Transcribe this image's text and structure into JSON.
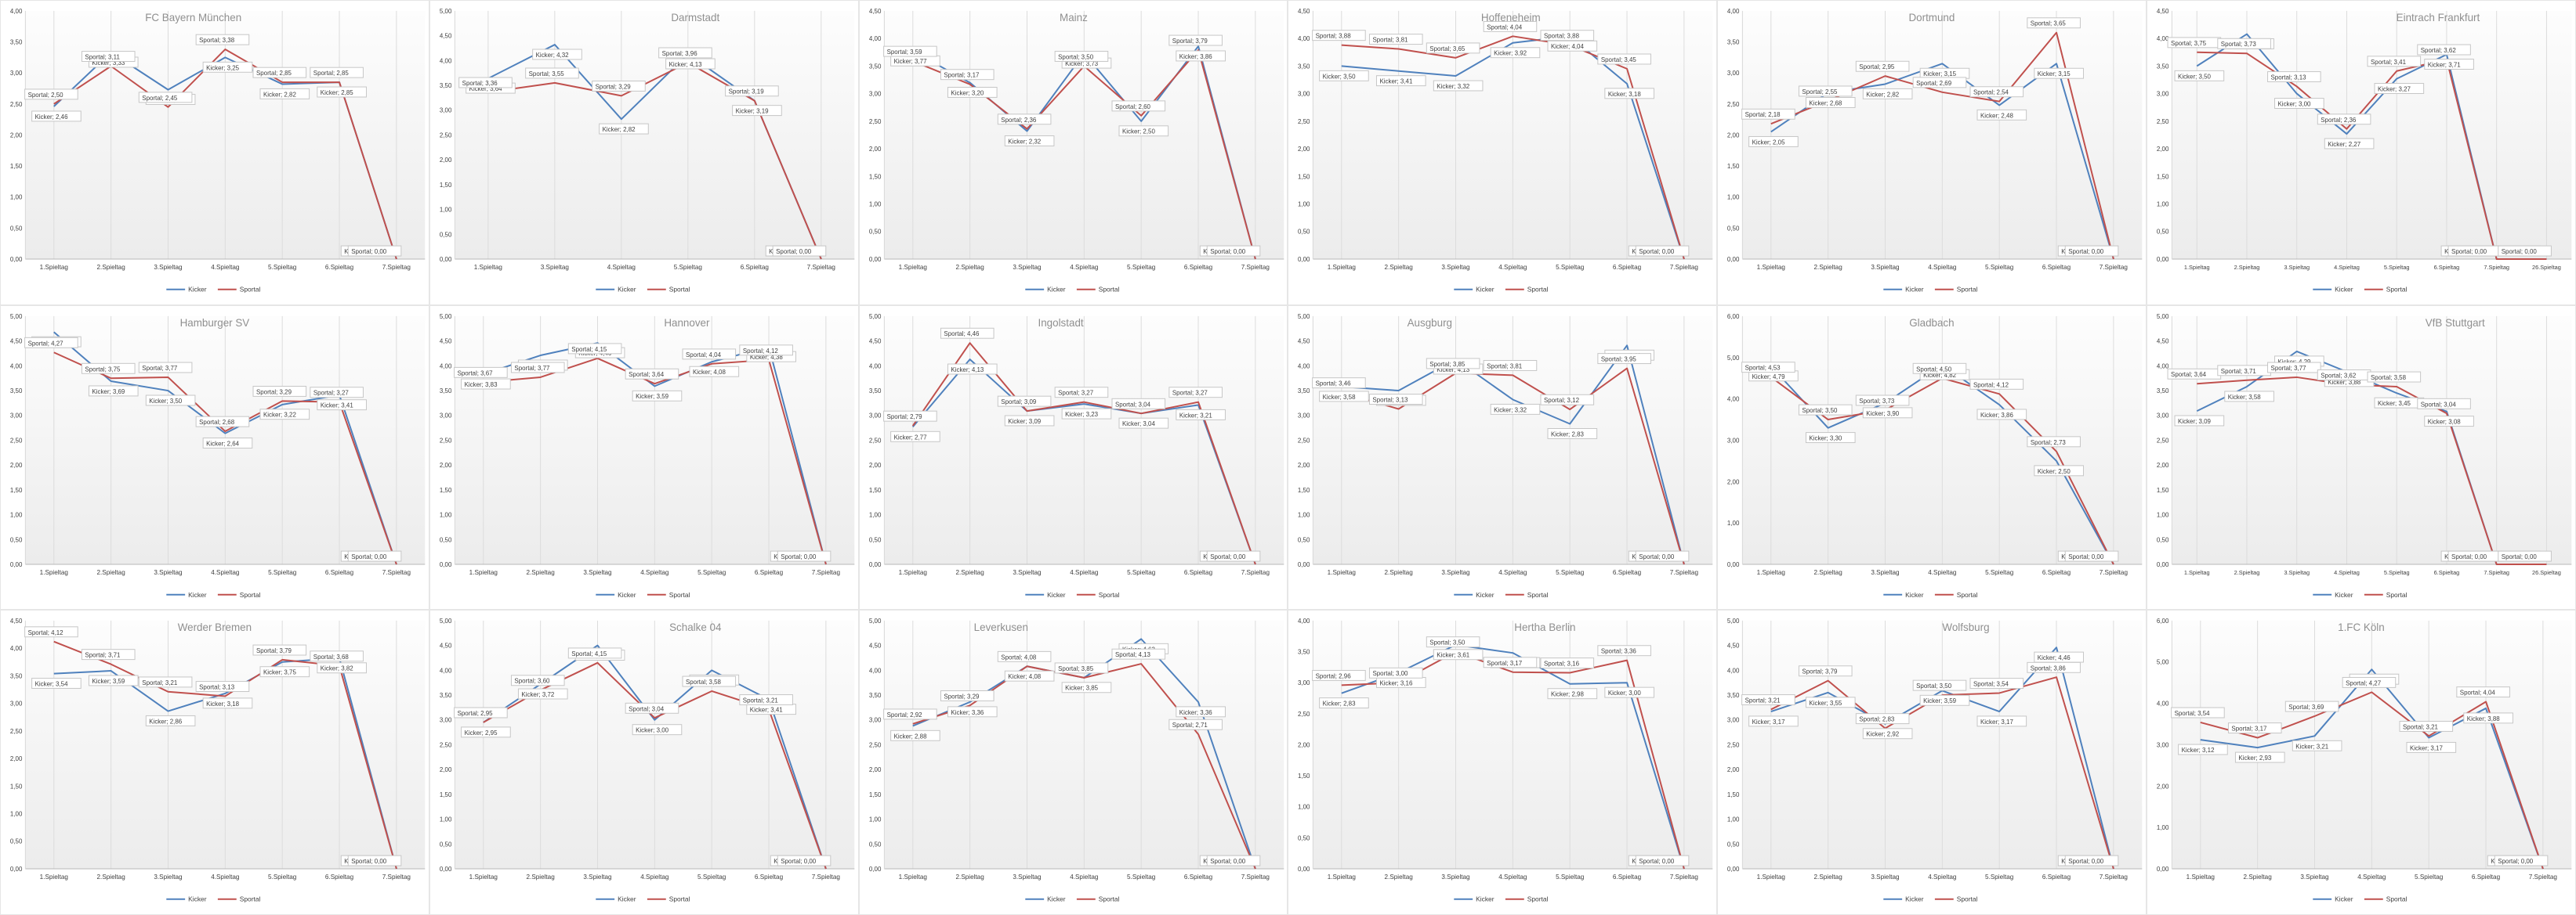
{
  "page": {
    "background": "#ffffff"
  },
  "layout": {
    "rows": 3,
    "cols": 6,
    "grid_on": true,
    "gridlines": "vertical",
    "legend_position": "bottom-center"
  },
  "colors": {
    "kicker_line": "#4f81bd",
    "sportal_line": "#c0504d",
    "title_text": "#8f8f8f",
    "axis_text": "#404040",
    "gridline": "#dcdcdc",
    "axis_line": "#b7b7b7",
    "label_box_border": "#c6c6c6",
    "label_box_fill": "#ffffff",
    "label_text": "#3f3f3f",
    "plot_bg_top": "#fdfdfd",
    "plot_bg_bottom": "#ececec"
  },
  "legend": {
    "kicker_label": "Kicker",
    "sportal_label": "Sportal"
  },
  "label_format": {
    "separator": "; ",
    "decimal": ","
  },
  "chart_data": [
    {
      "type": "line",
      "title": "FC Bayern München",
      "title_x": 0.45,
      "ylim": [
        0,
        4
      ],
      "ystep": 0.5,
      "categories": [
        "1.Spieltag",
        "2.Spieltag",
        "3.Spieltag",
        "4.Spieltag",
        "5.Spieltag",
        "6.Spieltag",
        "7.Spieltag"
      ],
      "series": [
        {
          "name": "Kicker",
          "values": [
            2.46,
            3.33,
            2.73,
            3.25,
            2.82,
            2.85,
            0
          ]
        },
        {
          "name": "Sportal",
          "values": [
            2.5,
            3.11,
            2.45,
            3.38,
            2.85,
            2.85,
            0
          ]
        }
      ]
    },
    {
      "type": "line",
      "title": "Darmstadt",
      "title_x": 0.62,
      "ylim": [
        0,
        5
      ],
      "ystep": 0.5,
      "categories": [
        "1.Spieltag",
        "3.Spieltag",
        "4.Spieltag",
        "5.Spieltag",
        "6.Spieltag",
        "7.Spieltag"
      ],
      "series": [
        {
          "name": "Kicker",
          "values": [
            3.64,
            4.32,
            2.82,
            4.13,
            3.19,
            0
          ]
        },
        {
          "name": "Sportal",
          "values": [
            3.36,
            3.55,
            3.29,
            3.96,
            3.19,
            0
          ]
        }
      ]
    },
    {
      "type": "line",
      "title": "Mainz",
      "title_x": 0.5,
      "ylim": [
        0,
        4.5
      ],
      "ystep": 0.5,
      "categories": [
        "1.Spieltag",
        "2.Spieltag",
        "3.Spieltag",
        "4.Spieltag",
        "5.Spieltag",
        "6.Spieltag",
        "7.Spieltag"
      ],
      "series": [
        {
          "name": "Kicker",
          "values": [
            3.77,
            3.2,
            2.32,
            3.73,
            2.5,
            3.86,
            0
          ]
        },
        {
          "name": "Sportal",
          "values": [
            3.59,
            3.17,
            2.36,
            3.5,
            2.6,
            3.79,
            0
          ]
        }
      ]
    },
    {
      "type": "line",
      "title": "Hoffeneheim",
      "title_x": 0.52,
      "ylim": [
        0,
        4.5
      ],
      "ystep": 0.5,
      "categories": [
        "1.Spieltag",
        "2.Spieltag",
        "3.Spieltag",
        "4.Spieltag",
        "5.Spieltag",
        "6.Spieltag",
        "7.Spieltag"
      ],
      "series": [
        {
          "name": "Kicker",
          "values": [
            3.5,
            3.41,
            3.32,
            3.92,
            4.04,
            3.18,
            0
          ]
        },
        {
          "name": "Sportal",
          "values": [
            3.88,
            3.81,
            3.65,
            4.04,
            3.88,
            3.45,
            0
          ]
        }
      ]
    },
    {
      "type": "line",
      "title": "Dortmund",
      "title_x": 0.5,
      "ylim": [
        0,
        4
      ],
      "ystep": 0.5,
      "categories": [
        "1.Spieltag",
        "2.Spieltag",
        "3.Spieltag",
        "4.Spieltag",
        "5.Spieltag",
        "6.Spieltag",
        "7.Spieltag"
      ],
      "series": [
        {
          "name": "Kicker",
          "values": [
            2.05,
            2.68,
            2.82,
            3.15,
            2.48,
            3.15,
            0
          ]
        },
        {
          "name": "Sportal",
          "values": [
            2.18,
            2.55,
            2.95,
            2.69,
            2.54,
            3.65,
            0
          ]
        }
      ]
    },
    {
      "type": "line",
      "title": "Eintrach Frankfurt",
      "title_x": 0.68,
      "ylim": [
        0,
        4.5
      ],
      "ystep": 0.5,
      "categories": [
        "1.Spieltag",
        "2.Spieltag",
        "3.Spieltag",
        "4.Spieltag",
        "5.Spieltag",
        "6.Spieltag",
        "7.Spieltag",
        "26.Spieltag"
      ],
      "series": [
        {
          "name": "Kicker",
          "values": [
            3.5,
            4.08,
            3.0,
            2.27,
            3.27,
            3.71,
            0,
            0
          ]
        },
        {
          "name": "Sportal",
          "values": [
            3.75,
            3.73,
            3.13,
            2.36,
            3.41,
            3.62,
            0,
            0
          ]
        }
      ]
    },
    {
      "type": "line",
      "title": "Hamburger SV",
      "title_x": 0.5,
      "ylim": [
        0,
        5
      ],
      "ystep": 0.5,
      "categories": [
        "1.Spieltag",
        "2.Spieltag",
        "3.Spieltag",
        "4.Spieltag",
        "5.Spieltag",
        "6.Spieltag",
        "7.Spieltag"
      ],
      "series": [
        {
          "name": "Kicker",
          "values": [
            4.68,
            3.69,
            3.5,
            2.64,
            3.22,
            3.41,
            0
          ]
        },
        {
          "name": "Sportal",
          "values": [
            4.27,
            3.75,
            3.77,
            2.68,
            3.29,
            3.27,
            0
          ]
        }
      ]
    },
    {
      "type": "line",
      "title": "Hannover",
      "title_x": 0.6,
      "ylim": [
        0,
        5
      ],
      "ystep": 0.5,
      "categories": [
        "1.Spieltag",
        "2.Spieltag",
        "3.Spieltag",
        "4.Spieltag",
        "5.Spieltag",
        "6.Spieltag",
        "7.Spieltag"
      ],
      "series": [
        {
          "name": "Kicker",
          "values": [
            3.83,
            4.21,
            4.46,
            3.59,
            4.08,
            4.38,
            0
          ]
        },
        {
          "name": "Sportal",
          "values": [
            3.67,
            3.77,
            4.15,
            3.64,
            4.04,
            4.12,
            0
          ]
        }
      ]
    },
    {
      "type": "line",
      "title": "Ingolstadt",
      "title_x": 0.47,
      "ylim": [
        0,
        5
      ],
      "ystep": 0.5,
      "categories": [
        "1.Spieltag",
        "2.Spieltag",
        "3.Spieltag",
        "4.Spieltag",
        "5.Spieltag",
        "6.Spieltag",
        "7.Spieltag"
      ],
      "series": [
        {
          "name": "Kicker",
          "values": [
            2.77,
            4.13,
            3.09,
            3.23,
            3.04,
            3.21,
            0
          ]
        },
        {
          "name": "Sportal",
          "values": [
            2.79,
            4.46,
            3.09,
            3.27,
            3.04,
            3.27,
            0
          ]
        }
      ]
    },
    {
      "type": "line",
      "title": "Ausgburg",
      "title_x": 0.33,
      "ylim": [
        0,
        5
      ],
      "ystep": 0.5,
      "categories": [
        "1.Spieltag",
        "2.Spieltag",
        "3.Spieltag",
        "4.Spieltag",
        "5.Spieltag",
        "6.Spieltag",
        "7.Spieltag"
      ],
      "series": [
        {
          "name": "Kicker",
          "values": [
            3.58,
            3.5,
            4.13,
            3.32,
            2.83,
            4.41,
            0
          ]
        },
        {
          "name": "Sportal",
          "values": [
            3.46,
            3.13,
            3.85,
            3.81,
            3.12,
            3.95,
            0
          ]
        }
      ]
    },
    {
      "type": "line",
      "title": "Gladbach",
      "title_x": 0.5,
      "ylim": [
        0,
        6
      ],
      "ystep": 1,
      "categories": [
        "1.Spieltag",
        "2.Spieltag",
        "3.Spieltag",
        "4.Spieltag",
        "5.Spieltag",
        "6.Spieltag",
        "7.Spieltag"
      ],
      "series": [
        {
          "name": "Kicker",
          "values": [
            4.79,
            3.3,
            3.9,
            4.82,
            3.86,
            2.5,
            0
          ]
        },
        {
          "name": "Sportal",
          "values": [
            4.53,
            3.5,
            3.73,
            4.5,
            4.12,
            2.73,
            0
          ]
        }
      ]
    },
    {
      "type": "line",
      "title": "VfB Stuttgart",
      "title_x": 0.72,
      "ylim": [
        0,
        5
      ],
      "ystep": 0.5,
      "categories": [
        "1.Spieltag",
        "2.Spieltag",
        "3.Spieltag",
        "4.Spieltag",
        "5.Spieltag",
        "6.Spieltag",
        "7.Spieltag",
        "26.Spieltag"
      ],
      "series": [
        {
          "name": "Kicker",
          "values": [
            3.09,
            3.58,
            4.29,
            3.88,
            3.45,
            3.08,
            0,
            0
          ]
        },
        {
          "name": "Sportal",
          "values": [
            3.64,
            3.71,
            3.77,
            3.62,
            3.58,
            3.04,
            0,
            0
          ]
        }
      ]
    },
    {
      "type": "line",
      "title": "Werder Bremen",
      "title_x": 0.5,
      "ylim": [
        0,
        4.5
      ],
      "ystep": 0.5,
      "categories": [
        "1.Spieltag",
        "2.Spieltag",
        "3.Spieltag",
        "4.Spieltag",
        "5.Spieltag",
        "6.Spieltag",
        "7.Spieltag"
      ],
      "series": [
        {
          "name": "Kicker",
          "values": [
            3.54,
            3.59,
            2.86,
            3.18,
            3.75,
            3.82,
            0
          ]
        },
        {
          "name": "Sportal",
          "values": [
            4.12,
            3.71,
            3.21,
            3.13,
            3.79,
            3.68,
            0
          ]
        }
      ]
    },
    {
      "type": "line",
      "title": "Schalke 04",
      "title_x": 0.62,
      "ylim": [
        0,
        5
      ],
      "ystep": 0.5,
      "categories": [
        "1.Spieltag",
        "2.Spieltag",
        "3.Spieltag",
        "4.Spieltag",
        "5.Spieltag",
        "6.Spieltag",
        "7.Spieltag"
      ],
      "series": [
        {
          "name": "Kicker",
          "values": [
            2.95,
            3.72,
            4.5,
            3.0,
            4.0,
            3.41,
            0
          ]
        },
        {
          "name": "Sportal",
          "values": [
            2.95,
            3.6,
            4.15,
            3.04,
            3.58,
            3.21,
            0
          ]
        }
      ]
    },
    {
      "type": "line",
      "title": "Leverkusen",
      "title_x": 0.33,
      "ylim": [
        0,
        5
      ],
      "ystep": 0.5,
      "categories": [
        "1.Spieltag",
        "2.Spieltag",
        "3.Spieltag",
        "4.Spieltag",
        "5.Spieltag",
        "6.Spieltag",
        "7.Spieltag"
      ],
      "series": [
        {
          "name": "Kicker",
          "values": [
            2.88,
            3.36,
            4.08,
            3.85,
            4.63,
            3.36,
            0
          ]
        },
        {
          "name": "Sportal",
          "values": [
            2.92,
            3.29,
            4.08,
            3.85,
            4.13,
            2.71,
            0
          ]
        }
      ]
    },
    {
      "type": "line",
      "title": "Hertha Berlin",
      "title_x": 0.6,
      "ylim": [
        0,
        4
      ],
      "ystep": 0.5,
      "categories": [
        "1.Spieltag",
        "2.Spieltag",
        "3.Spieltag",
        "4.Spieltag",
        "5.Spieltag",
        "6.Spieltag",
        "7.Spieltag"
      ],
      "series": [
        {
          "name": "Kicker",
          "values": [
            2.83,
            3.16,
            3.61,
            3.48,
            2.98,
            3.0,
            0
          ]
        },
        {
          "name": "Sportal",
          "values": [
            2.96,
            3.0,
            3.5,
            3.17,
            3.16,
            3.36,
            0
          ]
        }
      ]
    },
    {
      "type": "line",
      "title": "Wolfsburg",
      "title_x": 0.58,
      "ylim": [
        0,
        5
      ],
      "ystep": 0.5,
      "categories": [
        "1.Spieltag",
        "2.Spieltag",
        "3.Spieltag",
        "4.Spieltag",
        "5.Spieltag",
        "6.Spieltag",
        "7.Spieltag"
      ],
      "series": [
        {
          "name": "Kicker",
          "values": [
            3.17,
            3.55,
            2.92,
            3.59,
            3.17,
            4.46,
            0
          ]
        },
        {
          "name": "Sportal",
          "values": [
            3.21,
            3.79,
            2.83,
            3.5,
            3.54,
            3.86,
            0
          ]
        }
      ]
    },
    {
      "type": "line",
      "title": "1.FC Köln",
      "title_x": 0.5,
      "ylim": [
        0,
        6
      ],
      "ystep": 1,
      "categories": [
        "1.Spieltag",
        "2.Spieltag",
        "3.Spieltag",
        "4.Spieltag",
        "5.Spieltag",
        "6.Spieltag",
        "7.Spieltag"
      ],
      "series": [
        {
          "name": "Kicker",
          "values": [
            3.12,
            2.93,
            3.21,
            4.82,
            3.17,
            3.88,
            0
          ]
        },
        {
          "name": "Sportal",
          "values": [
            3.54,
            3.17,
            3.69,
            4.27,
            3.21,
            4.04,
            0
          ]
        }
      ]
    }
  ]
}
